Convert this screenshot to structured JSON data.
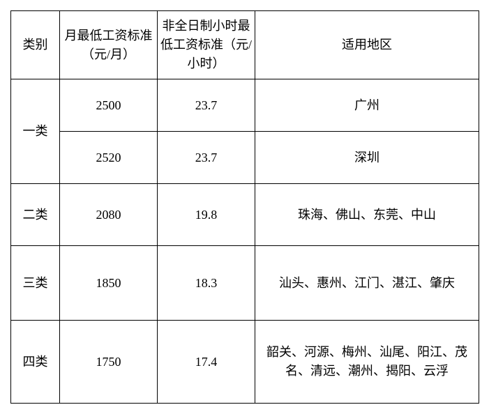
{
  "table": {
    "headers": {
      "category": "类别",
      "monthly": "月最低工资标准（元/月）",
      "hourly": "非全日制小时最低工资标准（元/小时）",
      "region": "适用地区"
    },
    "rows": [
      {
        "category": "一类",
        "monthly": "2500",
        "hourly": "23.7",
        "region": "广州",
        "rowspan": 2
      },
      {
        "category": "",
        "monthly": "2520",
        "hourly": "23.7",
        "region": "深圳"
      },
      {
        "category": "二类",
        "monthly": "2080",
        "hourly": "19.8",
        "region": "珠海、佛山、东莞、中山"
      },
      {
        "category": "三类",
        "monthly": "1850",
        "hourly": "18.3",
        "region": "汕头、惠州、江门、湛江、肇庆"
      },
      {
        "category": "四类",
        "monthly": "1750",
        "hourly": "17.4",
        "region": "韶关、河源、梅州、汕尾、阳江、茂名、清远、潮州、揭阳、云浮"
      }
    ]
  }
}
